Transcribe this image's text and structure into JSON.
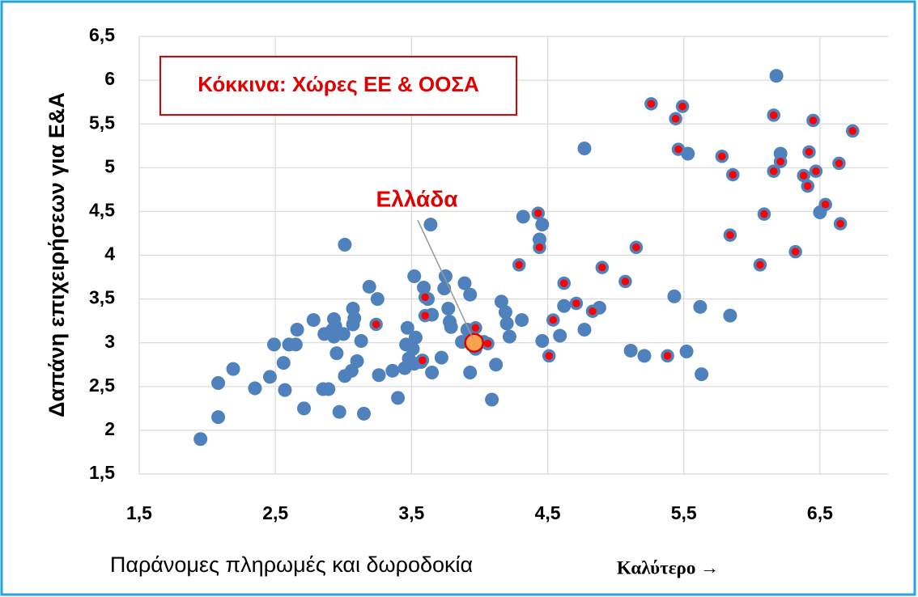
{
  "chart_data": {
    "type": "scatter",
    "xlabel": "Παράνομες πληρωμές και δωροδοκία",
    "ylabel": "Δαπάνη επιχειρήσεων για Ε&Α",
    "annotation": "Καλύτερο →",
    "note": "Κόκκινα: Χώρες ΕΕ & ΟΟΣΑ",
    "xlim": [
      1.5,
      7
    ],
    "ylim": [
      1.5,
      6.5
    ],
    "xticks": [
      {
        "value": 1.5,
        "label": "1,5"
      },
      {
        "value": 2.5,
        "label": "2,5"
      },
      {
        "value": 3.5,
        "label": "3,5"
      },
      {
        "value": 4.5,
        "label": "4,5"
      },
      {
        "value": 5.5,
        "label": "5,5"
      },
      {
        "value": 6.5,
        "label": "6,5"
      }
    ],
    "yticks": [
      {
        "value": 1.5,
        "label": "1,5"
      },
      2,
      {
        "value": 2.5,
        "label": "2,5"
      },
      3,
      {
        "value": 3.5,
        "label": "3,5"
      },
      4,
      {
        "value": 4.5,
        "label": "4,5"
      },
      5,
      {
        "value": 5.5,
        "label": "5,5"
      },
      6,
      {
        "value": 6.5,
        "label": "6,5"
      }
    ],
    "grid": true,
    "series": [
      {
        "color": "#4f81bd",
        "x": [
          1.95,
          2.08,
          2.08,
          2.19,
          2.35,
          2.46,
          2.49,
          2.56,
          2.57,
          2.6,
          2.65,
          2.66,
          2.71,
          2.78,
          2.85,
          2.86,
          2.89,
          2.92,
          2.93,
          2.93,
          2.94,
          2.95,
          2.97,
          3.0,
          3.01,
          3.01,
          3.06,
          3.07,
          3.07,
          3.08,
          3.1,
          3.13,
          3.15,
          3.19,
          3.25,
          3.26,
          3.36,
          3.4,
          3.45,
          3.46,
          3.47,
          3.48,
          3.51,
          3.52,
          3.52,
          3.53,
          3.57,
          3.59,
          3.62,
          3.64,
          3.65,
          3.65,
          3.72,
          3.74,
          3.75,
          3.77,
          3.78,
          3.79,
          3.87,
          3.89,
          3.91,
          3.93,
          3.93,
          3.97,
          4.03,
          4.09,
          4.12,
          4.16,
          4.19,
          4.2,
          4.22,
          4.31,
          4.32,
          4.44,
          4.46,
          4.46,
          4.59,
          4.62,
          4.77,
          4.77,
          4.88,
          5.11,
          5.21,
          5.43,
          5.52,
          5.53,
          5.62,
          5.63,
          5.84,
          6.18,
          6.21,
          6.5
        ],
        "values": [
          1.9,
          2.54,
          2.15,
          2.7,
          2.48,
          2.61,
          2.98,
          2.77,
          2.46,
          2.98,
          2.98,
          3.15,
          2.25,
          3.26,
          2.47,
          3.1,
          2.47,
          3.15,
          3.27,
          3.07,
          3.19,
          2.88,
          2.21,
          3.1,
          4.12,
          2.62,
          2.68,
          3.39,
          3.21,
          3.28,
          2.79,
          3.02,
          2.19,
          3.64,
          3.5,
          2.63,
          2.68,
          2.37,
          2.71,
          2.98,
          3.17,
          2.82,
          2.93,
          3.76,
          2.76,
          3.06,
          2.78,
          3.63,
          3.5,
          4.35,
          3.32,
          2.66,
          2.83,
          3.62,
          3.76,
          3.39,
          3.24,
          3.18,
          3.01,
          3.68,
          3.15,
          3.55,
          2.66,
          2.93,
          3.01,
          2.35,
          2.75,
          3.47,
          3.35,
          3.22,
          3.07,
          3.26,
          4.44,
          4.18,
          4.35,
          3.02,
          3.08,
          3.42,
          3.15,
          5.22,
          3.4,
          2.91,
          2.85,
          3.53,
          2.9,
          5.16,
          3.41,
          2.64,
          3.31,
          6.05,
          5.16,
          4.49
        ]
      },
      {
        "color": "#ff0000",
        "x": [
          3.24,
          3.58,
          3.6,
          3.6,
          3.97,
          4.06,
          4.29,
          4.43,
          4.44,
          4.51,
          4.54,
          4.62,
          4.71,
          4.83,
          4.9,
          5.07,
          5.15,
          5.26,
          5.38,
          5.44,
          5.46,
          5.49,
          5.78,
          5.84,
          5.86,
          6.06,
          6.09,
          6.16,
          6.16,
          6.21,
          6.32,
          6.38,
          6.41,
          6.42,
          6.45,
          6.47,
          6.54,
          6.64,
          6.65,
          6.74
        ],
        "values": [
          3.21,
          2.8,
          3.52,
          3.31,
          3.17,
          2.99,
          3.89,
          4.48,
          4.09,
          2.85,
          3.26,
          3.68,
          3.45,
          3.36,
          3.86,
          3.7,
          4.09,
          5.73,
          2.85,
          5.56,
          5.21,
          5.7,
          5.13,
          4.23,
          4.92,
          3.89,
          4.47,
          5.6,
          4.96,
          5.07,
          4.04,
          4.91,
          4.79,
          5.18,
          5.54,
          4.96,
          4.58,
          5.05,
          4.36,
          5.42
        ]
      },
      {
        "name": "Ελλάδα",
        "color": "#f9a24b",
        "x": [
          3.96
        ],
        "values": [
          3.0
        ]
      }
    ]
  }
}
